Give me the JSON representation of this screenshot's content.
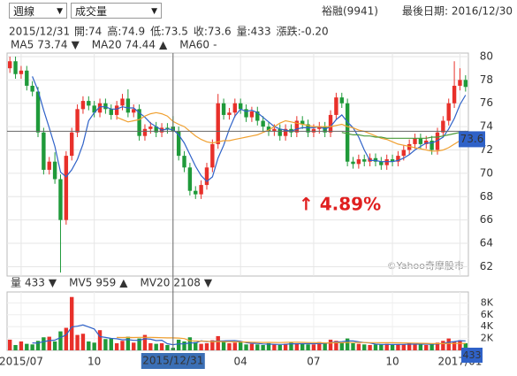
{
  "ui": {
    "period_select": "週線",
    "indicator_select": "成交量",
    "stock": "裕融(9941)",
    "last_date": "最後日期: 2016/12/30",
    "info_date": "2015/12/31",
    "info": [
      {
        "label": "開:",
        "value": "74"
      },
      {
        "label": "高:",
        "value": "74.9"
      },
      {
        "label": "低:",
        "value": "73.5"
      },
      {
        "label": "收:",
        "value": "73.6"
      },
      {
        "label": "量:",
        "value": "433"
      },
      {
        "label": "漲跌:",
        "value": "-0.20"
      }
    ],
    "watermark": "©Yahoo奇摩股市"
  },
  "chart_data": {
    "type": "candlestick",
    "annotation": "↑ 4.89%",
    "categories": [
      null,
      null,
      "2015/07",
      null,
      null,
      null,
      null,
      null,
      null,
      null,
      null,
      null,
      null,
      null,
      null,
      "10",
      null,
      null,
      null,
      null,
      null,
      null,
      null,
      null,
      null,
      null,
      null,
      null,
      null,
      "2015/12/31",
      null,
      null,
      null,
      null,
      null,
      null,
      null,
      null,
      null,
      null,
      null,
      "04",
      null,
      null,
      null,
      null,
      null,
      null,
      null,
      null,
      null,
      null,
      null,
      null,
      "07",
      null,
      null,
      null,
      null,
      null,
      null,
      null,
      null,
      null,
      null,
      null,
      null,
      null,
      "10",
      null,
      null,
      null,
      null,
      null,
      null,
      null,
      null,
      null,
      null,
      null,
      "2017/01",
      null
    ],
    "crosshair_index": 29,
    "up_color": "#e8302a",
    "down_color": "#1f9a3a",
    "open": [
      79.0,
      79.6,
      78.5,
      78.8,
      77.5,
      77.0,
      73.5,
      70.3,
      71.0,
      69.5,
      66.0,
      71.5,
      73.5,
      75.5,
      76.2,
      75.8,
      75.2,
      76.0,
      75.5,
      75.0,
      75.8,
      76.4,
      75.2,
      75.5,
      73.2,
      73.8,
      74.0,
      73.5,
      73.9,
      74.0,
      73.6,
      71.5,
      70.5,
      68.5,
      68.2,
      69.0,
      70.5,
      72.5,
      76.0,
      75.0,
      75.2,
      76.0,
      75.5,
      74.8,
      75.3,
      74.5,
      74.0,
      73.6,
      73.8,
      73.2,
      73.8,
      73.5,
      74.5,
      74.2,
      73.5,
      73.8,
      74.0,
      73.5,
      75.0,
      76.5,
      76.0,
      71.0,
      70.8,
      71.2,
      71.0,
      71.3,
      71.0,
      70.7,
      71.2,
      71.0,
      71.5,
      72.0,
      72.5,
      73.0,
      72.5,
      72.8,
      72.0,
      73.5,
      74.5,
      76.0,
      77.5,
      78.0
    ],
    "high": [
      80.0,
      80.0,
      79.2,
      79.2,
      77.9,
      77.4,
      73.9,
      71.4,
      71.8,
      69.9,
      71.9,
      73.9,
      75.9,
      76.6,
      76.6,
      76.2,
      76.4,
      76.4,
      75.9,
      76.2,
      76.8,
      77.2,
      75.9,
      75.9,
      74.2,
      74.4,
      74.4,
      74.3,
      74.3,
      74.9,
      74.0,
      71.9,
      70.9,
      68.9,
      69.4,
      70.9,
      72.9,
      76.8,
      76.4,
      75.6,
      76.4,
      76.4,
      75.9,
      75.7,
      75.7,
      74.9,
      74.4,
      74.2,
      74.2,
      74.2,
      74.2,
      74.9,
      74.9,
      74.6,
      74.2,
      74.4,
      74.4,
      75.4,
      76.9,
      76.9,
      76.4,
      71.4,
      71.6,
      71.6,
      71.7,
      71.7,
      71.4,
      71.6,
      71.6,
      71.9,
      72.4,
      72.9,
      73.4,
      73.4,
      73.2,
      73.2,
      73.9,
      74.9,
      76.4,
      79.6,
      79.0,
      78.4
    ],
    "low": [
      78.6,
      78.1,
      78.1,
      77.1,
      76.6,
      73.1,
      69.9,
      69.9,
      69.1,
      61.5,
      65.6,
      71.1,
      73.1,
      75.1,
      75.4,
      74.8,
      74.8,
      75.1,
      74.6,
      74.6,
      75.4,
      74.8,
      74.8,
      72.8,
      72.8,
      73.4,
      73.1,
      73.1,
      73.4,
      73.5,
      71.1,
      70.1,
      68.1,
      67.8,
      67.8,
      68.6,
      70.1,
      72.1,
      74.6,
      74.6,
      74.8,
      75.1,
      74.4,
      74.4,
      74.1,
      73.6,
      73.2,
      73.2,
      72.8,
      72.8,
      73.1,
      73.1,
      73.8,
      73.1,
      73.1,
      73.4,
      73.1,
      73.1,
      74.6,
      75.6,
      70.6,
      70.4,
      70.4,
      70.6,
      70.6,
      70.6,
      70.3,
      70.3,
      70.6,
      70.6,
      71.1,
      71.6,
      72.1,
      72.1,
      72.1,
      71.6,
      71.6,
      73.1,
      74.1,
      75.6,
      77.1,
      77.0
    ],
    "close": [
      79.6,
      78.5,
      78.8,
      77.5,
      77.0,
      73.5,
      70.3,
      71.0,
      69.5,
      66.0,
      71.5,
      73.5,
      75.5,
      76.2,
      75.8,
      75.2,
      76.0,
      75.5,
      75.0,
      75.8,
      76.4,
      75.2,
      75.5,
      73.2,
      73.8,
      74.0,
      73.5,
      73.9,
      73.8,
      73.6,
      71.5,
      70.5,
      68.5,
      68.2,
      69.0,
      70.5,
      72.5,
      76.0,
      75.0,
      75.2,
      76.0,
      75.5,
      74.8,
      75.3,
      74.5,
      74.0,
      73.6,
      73.8,
      73.2,
      73.8,
      73.5,
      74.5,
      74.2,
      73.5,
      73.8,
      74.0,
      73.5,
      75.0,
      76.5,
      76.0,
      71.0,
      70.8,
      71.2,
      71.0,
      71.3,
      71.0,
      70.7,
      71.2,
      71.0,
      71.5,
      72.0,
      72.5,
      73.0,
      72.5,
      72.8,
      72.0,
      73.5,
      74.5,
      76.0,
      77.5,
      78.0,
      77.4
    ],
    "ylim": [
      61.2,
      80.3
    ],
    "yticks": [
      62,
      64,
      66,
      68,
      70,
      72,
      74,
      76,
      78,
      80
    ],
    "grid": true,
    "series": [
      {
        "name": "MA5",
        "color": "#2f62c8",
        "legend_color": "#2f62c8",
        "arrow": "▼",
        "values": [
          null,
          null,
          null,
          null,
          78.3,
          77.1,
          75.4,
          73.9,
          72.3,
          70.1,
          69.7,
          70.3,
          71.2,
          72.5,
          74.5,
          75.2,
          75.7,
          75.7,
          75.5,
          75.5,
          75.7,
          75.6,
          75.6,
          75.2,
          74.8,
          74.3,
          74.0,
          73.7,
          73.8,
          73.74,
          73.3,
          72.6,
          71.6,
          70.6,
          69.8,
          69.3,
          69.7,
          71.3,
          72.4,
          73.8,
          74.9,
          75.5,
          75.3,
          75.4,
          75.2,
          74.8,
          74.4,
          74.0,
          73.8,
          73.7,
          73.6,
          73.8,
          73.9,
          73.9,
          73.9,
          74.0,
          73.8,
          74.0,
          74.6,
          75.0,
          74.4,
          73.9,
          73.1,
          72.0,
          71.1,
          71.1,
          71.0,
          71.0,
          71.0,
          71.1,
          71.3,
          71.6,
          72.0,
          72.3,
          72.6,
          72.6,
          72.8,
          73.1,
          73.8,
          74.7,
          75.9,
          76.7
        ]
      },
      {
        "name": "MA20",
        "color": "#f0a030",
        "legend_color": "#e8603c",
        "arrow": "▲",
        "values": [
          null,
          null,
          null,
          null,
          null,
          null,
          null,
          null,
          null,
          null,
          null,
          null,
          null,
          null,
          null,
          null,
          null,
          null,
          null,
          74.8,
          74.6,
          74.4,
          74.5,
          74.6,
          74.9,
          75.1,
          75.2,
          75.1,
          74.9,
          74.44,
          74.2,
          74.0,
          73.6,
          73.2,
          72.9,
          72.7,
          72.6,
          72.7,
          72.8,
          72.8,
          72.9,
          73.0,
          73.1,
          73.2,
          73.3,
          73.5,
          73.7,
          74.0,
          74.3,
          74.5,
          74.4,
          74.3,
          74.2,
          74.1,
          74.0,
          74.0,
          74.0,
          74.0,
          74.1,
          74.2,
          74.0,
          73.9,
          73.7,
          73.6,
          73.4,
          73.2,
          73.0,
          72.9,
          72.7,
          72.5,
          72.4,
          72.3,
          72.2,
          72.1,
          72.0,
          71.9,
          71.9,
          72.0,
          72.2,
          72.5,
          72.8,
          73.1
        ]
      },
      {
        "name": "MA60",
        "color": "#4a9a3a",
        "legend_color": "#4a9a3a",
        "legend_value": "-",
        "values": [
          null,
          null,
          null,
          null,
          null,
          null,
          null,
          null,
          null,
          null,
          null,
          null,
          null,
          null,
          null,
          null,
          null,
          null,
          null,
          null,
          null,
          null,
          null,
          null,
          null,
          null,
          null,
          null,
          null,
          null,
          null,
          null,
          null,
          null,
          null,
          null,
          null,
          null,
          null,
          null,
          null,
          null,
          null,
          null,
          null,
          null,
          null,
          null,
          null,
          null,
          null,
          null,
          null,
          null,
          null,
          null,
          null,
          null,
          null,
          73.5,
          73.4,
          73.3,
          73.3,
          73.2,
          73.2,
          73.1,
          73.1,
          73.0,
          73.0,
          73.0,
          73.0,
          73.0,
          73.0,
          73.0,
          73.0,
          73.1,
          73.1,
          73.2,
          73.3,
          73.4,
          73.5,
          73.6
        ]
      }
    ],
    "volume": {
      "name": "量",
      "arrow": "▼",
      "legend_color": "#333333",
      "values": [
        1800,
        900,
        1500,
        1100,
        1000,
        1600,
        2200,
        2300,
        1500,
        3200,
        3800,
        9000,
        2600,
        2800,
        1500,
        1300,
        3400,
        1900,
        2000,
        1200,
        1600,
        2300,
        1300,
        2000,
        2600,
        1200,
        1100,
        1200,
        900,
        433,
        1800,
        1500,
        2200,
        1400,
        1100,
        1200,
        1700,
        2400,
        1600,
        1200,
        1300,
        1400,
        1000,
        1100,
        1000,
        900,
        1200,
        1000,
        900,
        1100,
        1300,
        1200,
        1100,
        1000,
        1000,
        1400,
        1200,
        1800,
        1600,
        1300,
        2000,
        1200,
        1100,
        1000,
        900,
        1000,
        1000,
        1100,
        900,
        1000,
        1000,
        1200,
        1100,
        1000,
        900,
        1000,
        1300,
        1600,
        2000,
        1500,
        1700,
        1200
      ],
      "ylim": [
        0,
        9850
      ],
      "yticks": [
        {
          "value": 2000,
          "label": "2K"
        },
        {
          "value": 4000,
          "label": "4K"
        },
        {
          "value": 6000,
          "label": "6K"
        },
        {
          "value": 8000,
          "label": "8K"
        }
      ],
      "series": [
        {
          "name": "MV5",
          "color": "#2f62c8",
          "legend_color": "#2f62c8",
          "arrow": "▲",
          "values": [
            null,
            null,
            null,
            null,
            1260,
            1220,
            1480,
            1640,
            1720,
            2160,
            2600,
            3960,
            4080,
            4280,
            3940,
            3600,
            2320,
            2180,
            2020,
            1960,
            1780,
            1800,
            1680,
            1680,
            1960,
            1880,
            1640,
            1700,
            1120,
            959,
            1090,
            1090,
            1250,
            1270,
            1600,
            1480,
            1520,
            1560,
            1600,
            1620,
            1640,
            1540,
            1300,
            1200,
            1160,
            1080,
            1040,
            1020,
            1000,
            1020,
            1100,
            1100,
            1120,
            1140,
            1120,
            1140,
            1180,
            1280,
            1400,
            1460,
            1580,
            1580,
            1440,
            1320,
            1240,
            1040,
            1000,
            1000,
            980,
            1000,
            1000,
            1040,
            1040,
            1060,
            1040,
            1040,
            1060,
            1160,
            1360,
            1480,
            1620,
            1600
          ]
        },
        {
          "name": "MV20",
          "color": "#f0a030",
          "legend_color": "#e8603c",
          "arrow": "▼",
          "values": [
            null,
            null,
            null,
            null,
            null,
            null,
            null,
            null,
            null,
            null,
            null,
            null,
            null,
            null,
            null,
            null,
            null,
            null,
            null,
            2180,
            2170,
            2180,
            2170,
            2190,
            2200,
            2190,
            2160,
            2130,
            2100,
            2108,
            2080,
            1980,
            1600,
            1590,
            1540,
            1530,
            1440,
            1490,
            1460,
            1450,
            1440,
            1420,
            1400,
            1380,
            1350,
            1330,
            1350,
            1330,
            1320,
            1350,
            1370,
            1360,
            1350,
            1320,
            1300,
            1280,
            1250,
            1260,
            1280,
            1290,
            1320,
            1320,
            1320,
            1310,
            1300,
            1300,
            1290,
            1290,
            1280,
            1270,
            1250,
            1240,
            1230,
            1200,
            1180,
            1150,
            1140,
            1140,
            1150,
            1160,
            1170,
            1180
          ]
        }
      ]
    }
  }
}
